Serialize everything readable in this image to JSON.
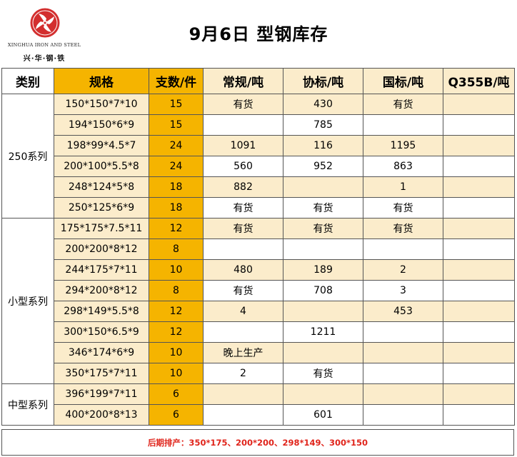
{
  "brand": {
    "name_en": "XINGHUA IRON AND STEEL",
    "name_cn": "兴·华·钢·铁",
    "logo_icon": "xinghua-logo-icon",
    "logo_color": "#d32f2f"
  },
  "title": "9月6日 型钢库存",
  "colors": {
    "header_yellow": "#f5b400",
    "row_tint": "#fbeccb",
    "note_red": "#e0241b"
  },
  "table": {
    "headers": [
      "类别",
      "规格",
      "支数/件",
      "常规/吨",
      "协标/吨",
      "国标/吨",
      "Q355B/吨"
    ],
    "groups": [
      {
        "category": "250系列",
        "rows": [
          {
            "spec": "150*150*7*10",
            "count": "15",
            "regular": "有货",
            "assoc": "430",
            "national": "有货",
            "q355b": ""
          },
          {
            "spec": "194*150*6*9",
            "count": "15",
            "regular": "",
            "assoc": "785",
            "national": "",
            "q355b": ""
          },
          {
            "spec": "198*99*4.5*7",
            "count": "24",
            "regular": "1091",
            "assoc": "116",
            "national": "1195",
            "q355b": ""
          },
          {
            "spec": "200*100*5.5*8",
            "count": "24",
            "regular": "560",
            "assoc": "952",
            "national": "863",
            "q355b": ""
          },
          {
            "spec": "248*124*5*8",
            "count": "18",
            "regular": "882",
            "assoc": "",
            "national": "1",
            "q355b": ""
          },
          {
            "spec": "250*125*6*9",
            "count": "18",
            "regular": "有货",
            "assoc": "有货",
            "national": "有货",
            "q355b": ""
          }
        ]
      },
      {
        "category": "小型系列",
        "rows": [
          {
            "spec": "175*175*7.5*11",
            "count": "12",
            "regular": "有货",
            "assoc": "有货",
            "national": "有货",
            "q355b": ""
          },
          {
            "spec": "200*200*8*12",
            "count": "8",
            "regular": "",
            "assoc": "",
            "national": "",
            "q355b": ""
          },
          {
            "spec": "244*175*7*11",
            "count": "10",
            "regular": "480",
            "assoc": "189",
            "national": "2",
            "q355b": ""
          },
          {
            "spec": "294*200*8*12",
            "count": "8",
            "regular": "有货",
            "assoc": "708",
            "national": "3",
            "q355b": ""
          },
          {
            "spec": "298*149*5.5*8",
            "count": "12",
            "regular": "4",
            "assoc": "",
            "national": "453",
            "q355b": ""
          },
          {
            "spec": "300*150*6.5*9",
            "count": "12",
            "regular": "",
            "assoc": "1211",
            "national": "",
            "q355b": ""
          },
          {
            "spec": "346*174*6*9",
            "count": "10",
            "regular": "晚上生产",
            "assoc": "",
            "national": "",
            "q355b": ""
          },
          {
            "spec": "350*175*7*11",
            "count": "10",
            "regular": "2",
            "assoc": "有货",
            "national": "",
            "q355b": ""
          }
        ]
      },
      {
        "category": "中型系列",
        "rows": [
          {
            "spec": "396*199*7*11",
            "count": "6",
            "regular": "",
            "assoc": "",
            "national": "",
            "q355b": ""
          },
          {
            "spec": "400*200*8*13",
            "count": "6",
            "regular": "",
            "assoc": "601",
            "national": "",
            "q355b": ""
          }
        ]
      }
    ]
  },
  "footer": {
    "note": "后期排产：350*175、200*200、298*149、300*150"
  }
}
